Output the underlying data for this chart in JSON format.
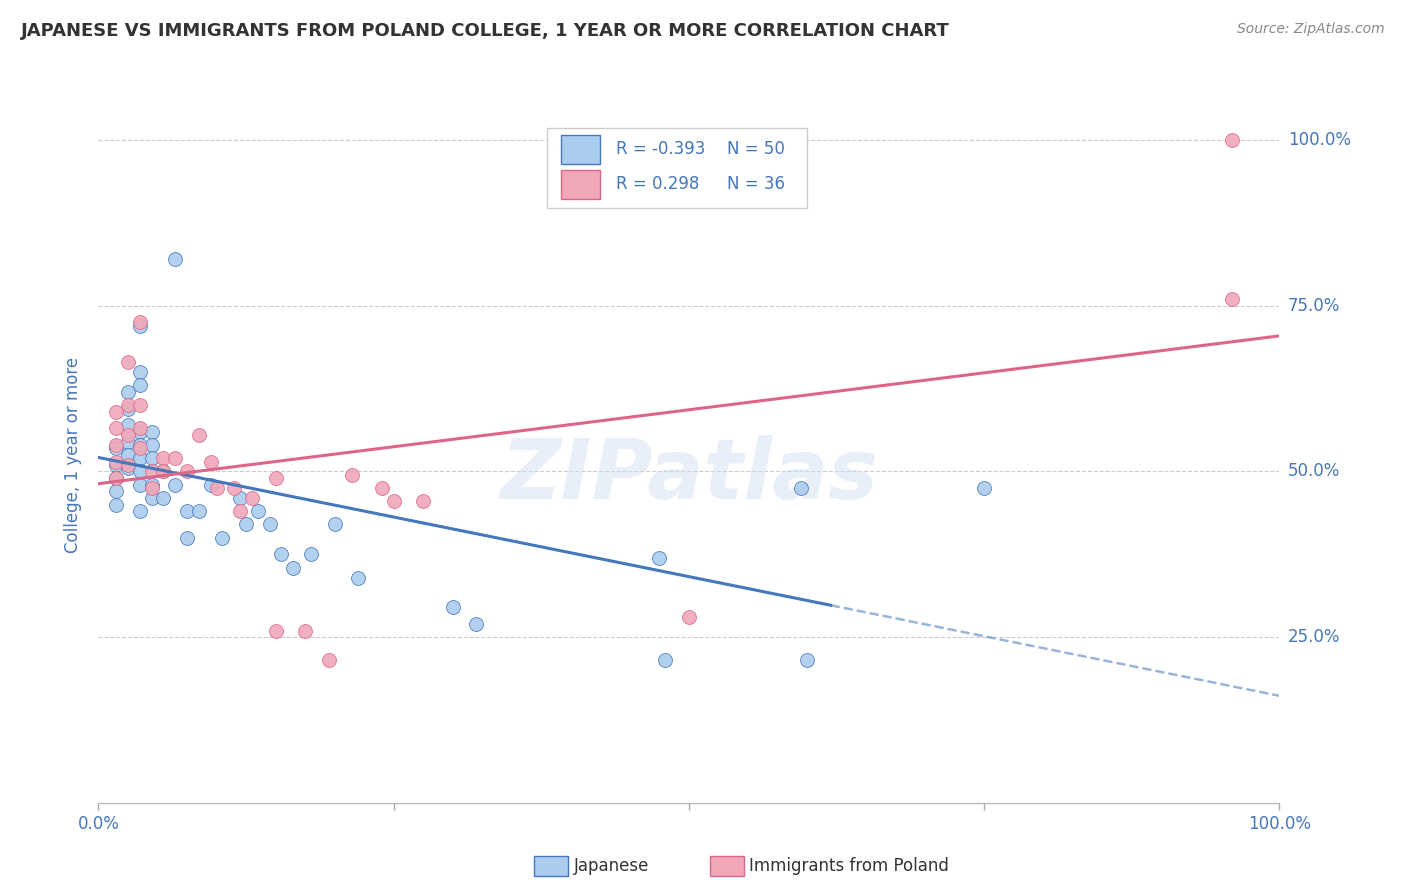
{
  "title": "JAPANESE VS IMMIGRANTS FROM POLAND COLLEGE, 1 YEAR OR MORE CORRELATION CHART",
  "source": "Source: ZipAtlas.com",
  "ylabel": "College, 1 year or more",
  "xlim": [
    0,
    1.0
  ],
  "ylim": [
    0,
    1.05
  ],
  "watermark": "ZIPatlas",
  "japanese_scatter": [
    [
      0.015,
      0.535
    ],
    [
      0.015,
      0.51
    ],
    [
      0.015,
      0.49
    ],
    [
      0.015,
      0.47
    ],
    [
      0.015,
      0.45
    ],
    [
      0.025,
      0.62
    ],
    [
      0.025,
      0.595
    ],
    [
      0.025,
      0.57
    ],
    [
      0.025,
      0.545
    ],
    [
      0.025,
      0.525
    ],
    [
      0.025,
      0.505
    ],
    [
      0.035,
      0.72
    ],
    [
      0.035,
      0.65
    ],
    [
      0.035,
      0.63
    ],
    [
      0.035,
      0.56
    ],
    [
      0.035,
      0.54
    ],
    [
      0.035,
      0.52
    ],
    [
      0.035,
      0.5
    ],
    [
      0.035,
      0.48
    ],
    [
      0.035,
      0.44
    ],
    [
      0.045,
      0.56
    ],
    [
      0.045,
      0.54
    ],
    [
      0.045,
      0.52
    ],
    [
      0.045,
      0.48
    ],
    [
      0.045,
      0.46
    ],
    [
      0.055,
      0.5
    ],
    [
      0.055,
      0.46
    ],
    [
      0.065,
      0.82
    ],
    [
      0.065,
      0.48
    ],
    [
      0.075,
      0.44
    ],
    [
      0.075,
      0.4
    ],
    [
      0.085,
      0.44
    ],
    [
      0.095,
      0.48
    ],
    [
      0.105,
      0.4
    ],
    [
      0.12,
      0.46
    ],
    [
      0.125,
      0.42
    ],
    [
      0.135,
      0.44
    ],
    [
      0.145,
      0.42
    ],
    [
      0.155,
      0.375
    ],
    [
      0.165,
      0.355
    ],
    [
      0.18,
      0.375
    ],
    [
      0.2,
      0.42
    ],
    [
      0.22,
      0.34
    ],
    [
      0.3,
      0.295
    ],
    [
      0.32,
      0.27
    ],
    [
      0.475,
      0.37
    ],
    [
      0.48,
      0.215
    ],
    [
      0.595,
      0.475
    ],
    [
      0.6,
      0.215
    ],
    [
      0.75,
      0.475
    ]
  ],
  "poland_scatter": [
    [
      0.015,
      0.59
    ],
    [
      0.015,
      0.565
    ],
    [
      0.015,
      0.54
    ],
    [
      0.015,
      0.515
    ],
    [
      0.015,
      0.49
    ],
    [
      0.025,
      0.665
    ],
    [
      0.025,
      0.6
    ],
    [
      0.025,
      0.555
    ],
    [
      0.025,
      0.51
    ],
    [
      0.035,
      0.725
    ],
    [
      0.035,
      0.6
    ],
    [
      0.035,
      0.565
    ],
    [
      0.035,
      0.535
    ],
    [
      0.045,
      0.5
    ],
    [
      0.045,
      0.475
    ],
    [
      0.055,
      0.52
    ],
    [
      0.055,
      0.5
    ],
    [
      0.065,
      0.52
    ],
    [
      0.075,
      0.5
    ],
    [
      0.085,
      0.555
    ],
    [
      0.095,
      0.515
    ],
    [
      0.1,
      0.475
    ],
    [
      0.115,
      0.475
    ],
    [
      0.12,
      0.44
    ],
    [
      0.13,
      0.46
    ],
    [
      0.15,
      0.49
    ],
    [
      0.15,
      0.26
    ],
    [
      0.175,
      0.26
    ],
    [
      0.195,
      0.215
    ],
    [
      0.215,
      0.495
    ],
    [
      0.24,
      0.475
    ],
    [
      0.25,
      0.455
    ],
    [
      0.275,
      0.455
    ],
    [
      0.5,
      0.28
    ],
    [
      0.96,
      0.76
    ],
    [
      0.96,
      1.0
    ]
  ],
  "japanese_line_color": "#4477bb",
  "poland_line_color": "#dd6688",
  "japanese_dot_color": "#aaccee",
  "poland_dot_color": "#f0a8b8",
  "background_color": "#ffffff",
  "grid_color": "#cccccc",
  "title_color": "#333333",
  "blue_color": "#4477bb",
  "legend_r1": "-0.393",
  "legend_n1": "50",
  "legend_r2": "0.298",
  "legend_n2": "36",
  "legend_color1": "#aaccee",
  "legend_color2": "#f0a8b8"
}
